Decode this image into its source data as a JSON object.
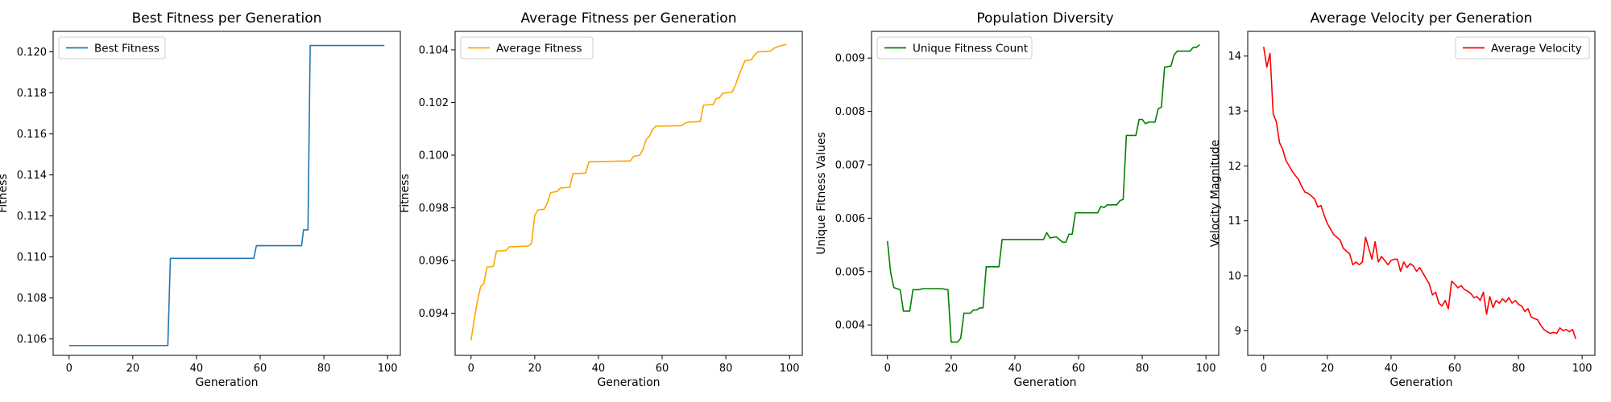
{
  "figure": {
    "background": "#ffffff"
  },
  "chart_data": [
    {
      "type": "line",
      "title": "Best Fitness per Generation",
      "xlabel": "Generation",
      "ylabel": "Fitness",
      "xlim": [
        -5,
        104
      ],
      "ylim": [
        0.1052,
        0.121
      ],
      "xticks": [
        0,
        20,
        40,
        60,
        80,
        100
      ],
      "yticks": [
        0.106,
        0.108,
        0.11,
        0.112,
        0.114,
        0.116,
        0.118,
        0.12
      ],
      "yticks_decimals": 3,
      "legend_position": "top-left",
      "grid": false,
      "series": [
        {
          "name": "Best Fitness",
          "color": "#1f77b4",
          "points": [
            [
              0,
              0.10568
            ],
            [
              31,
              0.10568
            ],
            [
              31.8,
              0.10993
            ],
            [
              58,
              0.10993
            ],
            [
              58.8,
              0.11055
            ],
            [
              73,
              0.11055
            ],
            [
              73.6,
              0.11132
            ],
            [
              75,
              0.11132
            ],
            [
              75.7,
              0.12031
            ],
            [
              99,
              0.12031
            ]
          ]
        }
      ]
    },
    {
      "type": "line",
      "title": "Average Fitness per Generation",
      "xlabel": "Generation",
      "ylabel": "Fitness",
      "xlim": [
        -5,
        104
      ],
      "ylim": [
        0.0924,
        0.1047
      ],
      "xticks": [
        0,
        20,
        40,
        60,
        80,
        100
      ],
      "yticks": [
        0.094,
        0.096,
        0.098,
        0.1,
        0.102,
        0.104
      ],
      "yticks_decimals": 3,
      "legend_position": "top-left",
      "grid": false,
      "series": [
        {
          "name": "Average Fitness",
          "color": "#ffa500",
          "points": [
            [
              0,
              0.09297
            ],
            [
              1,
              0.09375
            ],
            [
              2,
              0.09445
            ],
            [
              3,
              0.09501
            ],
            [
              4,
              0.09512
            ],
            [
              5,
              0.09575
            ],
            [
              7,
              0.09578
            ],
            [
              8,
              0.09636
            ],
            [
              11,
              0.09638
            ],
            [
              12,
              0.09652
            ],
            [
              18,
              0.09655
            ],
            [
              19,
              0.09665
            ],
            [
              20,
              0.09772
            ],
            [
              21,
              0.09792
            ],
            [
              23,
              0.09795
            ],
            [
              24,
              0.0982
            ],
            [
              25,
              0.09858
            ],
            [
              27,
              0.09862
            ],
            [
              28,
              0.09875
            ],
            [
              31,
              0.09878
            ],
            [
              32,
              0.0993
            ],
            [
              36,
              0.09932
            ],
            [
              37,
              0.09975
            ],
            [
              50,
              0.09978
            ],
            [
              51,
              0.09995
            ],
            [
              53,
              0.1
            ],
            [
              54,
              0.10022
            ],
            [
              55,
              0.1006
            ],
            [
              56,
              0.10072
            ],
            [
              57,
              0.10098
            ],
            [
              58,
              0.1011
            ],
            [
              66,
              0.10112
            ],
            [
              67,
              0.1012
            ],
            [
              68,
              0.10125
            ],
            [
              72,
              0.10128
            ],
            [
              73,
              0.1019
            ],
            [
              76,
              0.10192
            ],
            [
              77,
              0.10215
            ],
            [
              78,
              0.10218
            ],
            [
              79,
              0.10235
            ],
            [
              82,
              0.1024
            ],
            [
              83,
              0.10265
            ],
            [
              84,
              0.103
            ],
            [
              85,
              0.1033
            ],
            [
              86,
              0.10358
            ],
            [
              88,
              0.10362
            ],
            [
              89,
              0.1038
            ],
            [
              90,
              0.10392
            ],
            [
              94,
              0.10395
            ],
            [
              95,
              0.10405
            ],
            [
              97,
              0.10415
            ],
            [
              99,
              0.1042
            ]
          ]
        }
      ]
    },
    {
      "type": "line",
      "title": "Population Diversity",
      "xlabel": "Generation",
      "ylabel": "Unique Fitness Values",
      "xlim": [
        -5,
        104
      ],
      "ylim": [
        0.00343,
        0.0095
      ],
      "xticks": [
        0,
        20,
        40,
        60,
        80,
        100
      ],
      "yticks": [
        0.004,
        0.005,
        0.006,
        0.007,
        0.008,
        0.009
      ],
      "yticks_decimals": 3,
      "legend_position": "top-left",
      "grid": false,
      "series": [
        {
          "name": "Unique Fitness Count",
          "color": "#008000",
          "points": [
            [
              0,
              0.00557
            ],
            [
              1,
              0.00498
            ],
            [
              2,
              0.0047
            ],
            [
              3,
              0.00468
            ],
            [
              4,
              0.00466
            ],
            [
              5,
              0.00426
            ],
            [
              7,
              0.00426
            ],
            [
              8,
              0.00466
            ],
            [
              10,
              0.00466
            ],
            [
              11,
              0.00468
            ],
            [
              17,
              0.00468
            ],
            [
              18,
              0.00467
            ],
            [
              19,
              0.00466
            ],
            [
              20,
              0.00368
            ],
            [
              22,
              0.00368
            ],
            [
              23,
              0.00375
            ],
            [
              24,
              0.00422
            ],
            [
              26,
              0.00422
            ],
            [
              27,
              0.00428
            ],
            [
              28,
              0.00428
            ],
            [
              29,
              0.00432
            ],
            [
              30,
              0.00432
            ],
            [
              31,
              0.00509
            ],
            [
              35,
              0.00509
            ],
            [
              36,
              0.0056
            ],
            [
              49,
              0.0056
            ],
            [
              50,
              0.00573
            ],
            [
              51,
              0.00563
            ],
            [
              53,
              0.00565
            ],
            [
              55,
              0.00555
            ],
            [
              56,
              0.00555
            ],
            [
              57,
              0.0057
            ],
            [
              58,
              0.0057
            ],
            [
              59,
              0.0061
            ],
            [
              66,
              0.0061
            ],
            [
              67,
              0.00622
            ],
            [
              68,
              0.0062
            ],
            [
              69,
              0.00625
            ],
            [
              72,
              0.00625
            ],
            [
              73,
              0.00633
            ],
            [
              74,
              0.00635
            ],
            [
              75,
              0.00755
            ],
            [
              78,
              0.00755
            ],
            [
              79,
              0.00785
            ],
            [
              80,
              0.00785
            ],
            [
              81,
              0.00777
            ],
            [
              82,
              0.0078
            ],
            [
              84,
              0.0078
            ],
            [
              85,
              0.00805
            ],
            [
              86,
              0.00808
            ],
            [
              87,
              0.00883
            ],
            [
              89,
              0.00885
            ],
            [
              90,
              0.00906
            ],
            [
              91,
              0.00913
            ],
            [
              95,
              0.00913
            ],
            [
              96,
              0.0092
            ],
            [
              97,
              0.0092
            ],
            [
              98,
              0.00925
            ]
          ]
        }
      ]
    },
    {
      "type": "line",
      "title": "Average Velocity per Generation",
      "xlabel": "Generation",
      "ylabel": "Velocity Magnitude",
      "xlim": [
        -5,
        104
      ],
      "ylim": [
        8.55,
        14.45
      ],
      "xticks": [
        0,
        20,
        40,
        60,
        80,
        100
      ],
      "yticks": [
        9,
        10,
        11,
        12,
        13,
        14
      ],
      "yticks_decimals": 0,
      "legend_position": "top-right",
      "grid": false,
      "series": [
        {
          "name": "Average Velocity",
          "color": "#ff0000",
          "points": [
            [
              0,
              14.17
            ],
            [
              1,
              13.8
            ],
            [
              2,
              14.05
            ],
            [
              3,
              12.95
            ],
            [
              4,
              12.8
            ],
            [
              5,
              12.42
            ],
            [
              6,
              12.3
            ],
            [
              7,
              12.1
            ],
            [
              8,
              12.0
            ],
            [
              9,
              11.9
            ],
            [
              10,
              11.82
            ],
            [
              11,
              11.75
            ],
            [
              12,
              11.62
            ],
            [
              13,
              11.52
            ],
            [
              14,
              11.5
            ],
            [
              15,
              11.45
            ],
            [
              16,
              11.4
            ],
            [
              17,
              11.25
            ],
            [
              18,
              11.28
            ],
            [
              19,
              11.1
            ],
            [
              20,
              10.95
            ],
            [
              21,
              10.85
            ],
            [
              22,
              10.75
            ],
            [
              23,
              10.7
            ],
            [
              24,
              10.65
            ],
            [
              25,
              10.5
            ],
            [
              26,
              10.45
            ],
            [
              27,
              10.4
            ],
            [
              28,
              10.2
            ],
            [
              29,
              10.25
            ],
            [
              30,
              10.2
            ],
            [
              31,
              10.25
            ],
            [
              32,
              10.7
            ],
            [
              33,
              10.5
            ],
            [
              34,
              10.3
            ],
            [
              35,
              10.62
            ],
            [
              36,
              10.25
            ],
            [
              37,
              10.35
            ],
            [
              38,
              10.28
            ],
            [
              39,
              10.2
            ],
            [
              40,
              10.28
            ],
            [
              41,
              10.3
            ],
            [
              42,
              10.3
            ],
            [
              43,
              10.08
            ],
            [
              44,
              10.25
            ],
            [
              45,
              10.15
            ],
            [
              46,
              10.22
            ],
            [
              47,
              10.18
            ],
            [
              48,
              10.08
            ],
            [
              49,
              10.15
            ],
            [
              50,
              10.05
            ],
            [
              51,
              9.95
            ],
            [
              52,
              9.85
            ],
            [
              53,
              9.65
            ],
            [
              54,
              9.7
            ],
            [
              55,
              9.5
            ],
            [
              56,
              9.45
            ],
            [
              57,
              9.55
            ],
            [
              58,
              9.4
            ],
            [
              59,
              9.9
            ],
            [
              60,
              9.85
            ],
            [
              61,
              9.78
            ],
            [
              62,
              9.82
            ],
            [
              63,
              9.75
            ],
            [
              64,
              9.72
            ],
            [
              65,
              9.68
            ],
            [
              66,
              9.6
            ],
            [
              67,
              9.62
            ],
            [
              68,
              9.55
            ],
            [
              69,
              9.7
            ],
            [
              70,
              9.3
            ],
            [
              71,
              9.62
            ],
            [
              72,
              9.42
            ],
            [
              73,
              9.55
            ],
            [
              74,
              9.5
            ],
            [
              75,
              9.58
            ],
            [
              76,
              9.52
            ],
            [
              77,
              9.6
            ],
            [
              78,
              9.5
            ],
            [
              79,
              9.55
            ],
            [
              80,
              9.48
            ],
            [
              81,
              9.45
            ],
            [
              82,
              9.35
            ],
            [
              83,
              9.4
            ],
            [
              84,
              9.25
            ],
            [
              85,
              9.22
            ],
            [
              86,
              9.2
            ],
            [
              87,
              9.1
            ],
            [
              88,
              9.02
            ],
            [
              89,
              8.98
            ],
            [
              90,
              8.95
            ],
            [
              91,
              8.97
            ],
            [
              92,
              8.95
            ],
            [
              93,
              9.05
            ],
            [
              94,
              9.0
            ],
            [
              95,
              9.02
            ],
            [
              96,
              8.98
            ],
            [
              97,
              9.02
            ],
            [
              98,
              8.85
            ]
          ]
        }
      ]
    }
  ]
}
